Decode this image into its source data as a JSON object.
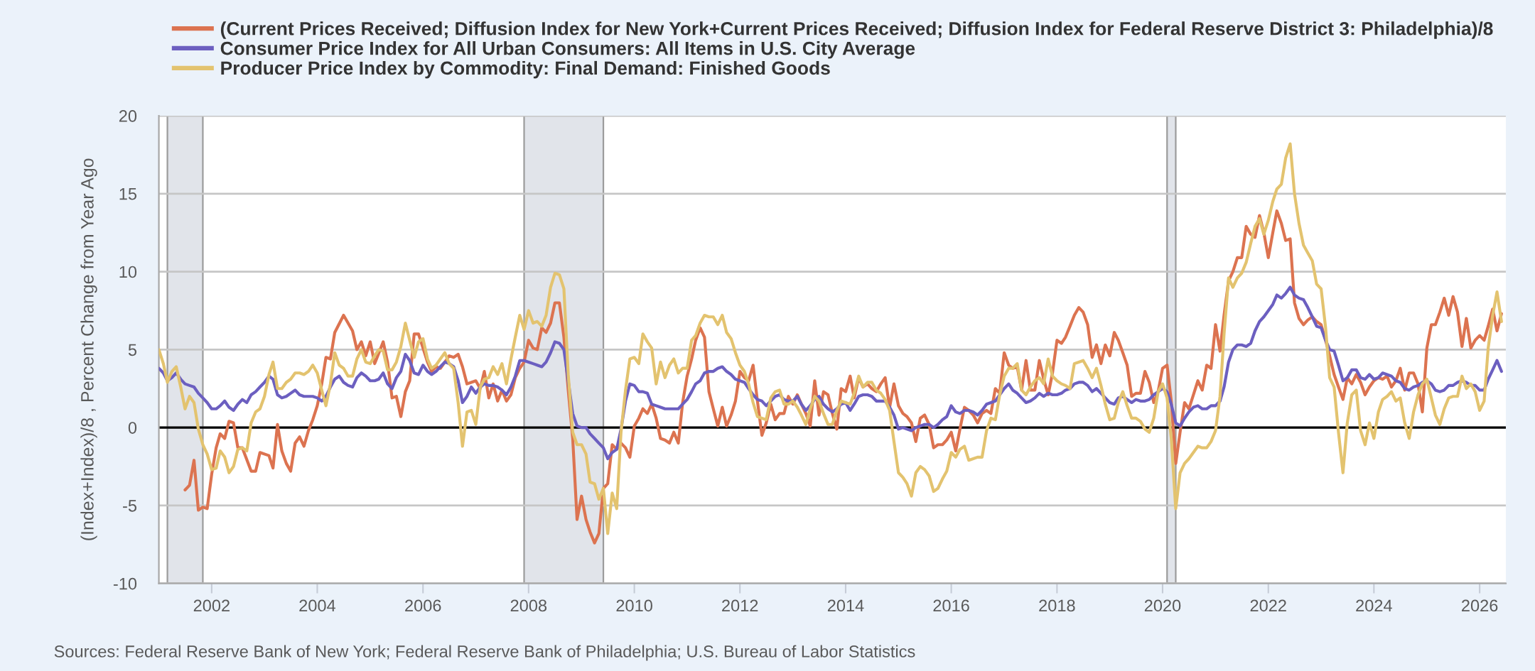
{
  "chart_data": {
    "type": "line",
    "ylabel": "(Index+Index)/8 , Percent Change from Year Ago",
    "annotations": [
      "Sources: Federal Reserve Bank of New York; Federal Reserve Bank of Philadelphia; U.S. Bureau of Labor Statistics"
    ],
    "x": [
      "2001-01",
      "2001-02",
      "2001-03",
      "2001-04",
      "2001-05",
      "2001-06",
      "2001-07",
      "2001-08",
      "2001-09",
      "2001-10",
      "2001-11",
      "2001-12",
      "2002-01",
      "2002-02",
      "2002-03",
      "2002-04",
      "2002-05",
      "2002-06",
      "2002-07",
      "2002-08",
      "2002-09",
      "2002-10",
      "2002-11",
      "2002-12",
      "2003-01",
      "2003-02",
      "2003-03",
      "2003-04",
      "2003-05",
      "2003-06",
      "2003-07",
      "2003-08",
      "2003-09",
      "2003-10",
      "2003-11",
      "2003-12",
      "2004-01",
      "2004-02",
      "2004-03",
      "2004-04",
      "2004-05",
      "2004-06",
      "2004-07",
      "2004-08",
      "2004-09",
      "2004-10",
      "2004-11",
      "2004-12",
      "2005-01",
      "2005-02",
      "2005-03",
      "2005-04",
      "2005-05",
      "2005-06",
      "2005-07",
      "2005-08",
      "2005-09",
      "2005-10",
      "2005-11",
      "2005-12",
      "2006-01",
      "2006-02",
      "2006-03",
      "2006-04",
      "2006-05",
      "2006-06",
      "2006-07",
      "2006-08",
      "2006-09",
      "2006-10",
      "2006-11",
      "2006-12",
      "2007-01",
      "2007-02",
      "2007-03",
      "2007-04",
      "2007-05",
      "2007-06",
      "2007-07",
      "2007-08",
      "2007-09",
      "2007-10",
      "2007-11",
      "2007-12",
      "2008-01",
      "2008-02",
      "2008-03",
      "2008-04",
      "2008-05",
      "2008-06",
      "2008-07",
      "2008-08",
      "2008-09",
      "2008-10",
      "2008-11",
      "2008-12",
      "2009-01",
      "2009-02",
      "2009-03",
      "2009-04",
      "2009-05",
      "2009-06",
      "2009-07",
      "2009-08",
      "2009-09",
      "2009-10",
      "2009-11",
      "2009-12",
      "2010-01",
      "2010-02",
      "2010-03",
      "2010-04",
      "2010-05",
      "2010-06",
      "2010-07",
      "2010-08",
      "2010-09",
      "2010-10",
      "2010-11",
      "2010-12",
      "2011-01",
      "2011-02",
      "2011-03",
      "2011-04",
      "2011-05",
      "2011-06",
      "2011-07",
      "2011-08",
      "2011-09",
      "2011-10",
      "2011-11",
      "2011-12",
      "2012-01",
      "2012-02",
      "2012-03",
      "2012-04",
      "2012-05",
      "2012-06",
      "2012-07",
      "2012-08",
      "2012-09",
      "2012-10",
      "2012-11",
      "2012-12",
      "2013-01",
      "2013-02",
      "2013-03",
      "2013-04",
      "2013-05",
      "2013-06",
      "2013-07",
      "2013-08",
      "2013-09",
      "2013-10",
      "2013-11",
      "2013-12",
      "2014-01",
      "2014-02",
      "2014-03",
      "2014-04",
      "2014-05",
      "2014-06",
      "2014-07",
      "2014-08",
      "2014-09",
      "2014-10",
      "2014-11",
      "2014-12",
      "2015-01",
      "2015-02",
      "2015-03",
      "2015-04",
      "2015-05",
      "2015-06",
      "2015-07",
      "2015-08",
      "2015-09",
      "2015-10",
      "2015-11",
      "2015-12",
      "2016-01",
      "2016-02",
      "2016-03",
      "2016-04",
      "2016-05",
      "2016-06",
      "2016-07",
      "2016-08",
      "2016-09",
      "2016-10",
      "2016-11",
      "2016-12",
      "2017-01",
      "2017-02",
      "2017-03",
      "2017-04",
      "2017-05",
      "2017-06",
      "2017-07",
      "2017-08",
      "2017-09",
      "2017-10",
      "2017-11",
      "2017-12",
      "2018-01",
      "2018-02",
      "2018-03",
      "2018-04",
      "2018-05",
      "2018-06",
      "2018-07",
      "2018-08",
      "2018-09",
      "2018-10",
      "2018-11",
      "2018-12",
      "2019-01",
      "2019-02",
      "2019-03",
      "2019-04",
      "2019-05",
      "2019-06",
      "2019-07",
      "2019-08",
      "2019-09",
      "2019-10",
      "2019-11",
      "2019-12",
      "2020-01",
      "2020-02",
      "2020-03",
      "2020-04",
      "2020-05",
      "2020-06",
      "2020-07",
      "2020-08",
      "2020-09",
      "2020-10",
      "2020-11",
      "2020-12",
      "2021-01",
      "2021-02",
      "2021-03",
      "2021-04",
      "2021-05",
      "2021-06",
      "2021-07",
      "2021-08",
      "2021-09",
      "2021-10",
      "2021-11",
      "2021-12",
      "2022-01",
      "2022-02",
      "2022-03",
      "2022-04",
      "2022-05",
      "2022-06",
      "2022-07",
      "2022-08",
      "2022-09",
      "2022-10",
      "2022-11",
      "2022-12",
      "2023-01",
      "2023-02",
      "2023-03",
      "2023-04",
      "2023-05",
      "2023-06",
      "2023-07",
      "2023-08",
      "2023-09",
      "2023-10",
      "2023-11",
      "2023-12",
      "2024-01",
      "2024-02",
      "2024-03",
      "2024-04",
      "2024-05",
      "2024-06",
      "2024-07",
      "2024-08",
      "2024-09",
      "2024-10",
      "2024-11",
      "2024-12",
      "2025-01",
      "2025-02",
      "2025-03",
      "2025-04",
      "2025-05",
      "2025-06",
      "2025-07",
      "2025-08",
      "2025-09",
      "2025-10",
      "2025-11",
      "2025-12",
      "2026-01",
      "2026-02",
      "2026-03",
      "2026-04",
      "2026-05",
      "2026-06"
    ],
    "series": [
      {
        "name": "(Current Prices Received; Diffusion Index for New York+Current Prices Received; Diffusion Index for Federal Reserve District 3: Philadelphia)/8",
        "color": "#dc7350",
        "x": [
          "2001-07",
          "2001-08",
          "2001-09",
          "2001-10",
          "2001-11",
          "2001-12",
          "2002-01",
          "2002-02",
          "2002-03",
          "2002-04",
          "2002-05",
          "2002-06",
          "2002-07",
          "2002-08",
          "2002-10",
          "2002-11",
          "2002-12",
          "2003-02",
          "2003-03",
          "2003-04",
          "2003-05",
          "2003-06",
          "2003-07",
          "2003-08",
          "2003-09",
          "2003-10",
          "2003-11",
          "2003-12",
          "2004-01",
          "2004-02",
          "2004-03",
          "2004-04",
          "2004-05",
          "2004-07",
          "2004-08",
          "2004-09",
          "2004-10",
          "2004-11",
          "2004-12",
          "2005-01",
          "2005-02",
          "2005-04",
          "2005-05",
          "2005-06",
          "2005-07",
          "2005-08",
          "2005-09",
          "2005-10",
          "2005-11",
          "2005-12",
          "2006-01",
          "2006-02",
          "2006-03",
          "2006-04",
          "2006-05",
          "2006-06",
          "2006-07",
          "2006-08",
          "2006-09",
          "2006-10",
          "2006-11",
          "2006-12",
          "2007-01",
          "2007-02",
          "2007-03",
          "2007-04",
          "2007-05",
          "2007-06",
          "2007-07",
          "2007-08",
          "2007-09",
          "2007-10",
          "2007-11",
          "2007-12",
          "2008-01",
          "2008-02",
          "2008-03",
          "2008-04",
          "2008-05",
          "2008-06",
          "2008-07",
          "2008-08",
          "2008-09",
          "2008-10",
          "2008-11",
          "2008-12",
          "2009-01",
          "2009-02",
          "2009-03",
          "2009-04",
          "2009-05",
          "2009-06",
          "2009-07",
          "2009-08",
          "2009-09",
          "2009-10",
          "2009-11",
          "2009-12",
          "2010-01",
          "2010-02",
          "2010-03",
          "2010-04",
          "2010-05",
          "2010-06",
          "2010-07",
          "2010-08",
          "2010-09",
          "2010-10",
          "2010-11",
          "2010-12",
          "2011-01",
          "2011-02",
          "2011-03",
          "2011-04",
          "2011-05",
          "2011-06",
          "2011-07",
          "2011-08",
          "2011-09",
          "2011-10",
          "2011-11",
          "2011-12",
          "2012-01",
          "2012-02",
          "2012-03",
          "2012-04",
          "2012-05",
          "2012-06",
          "2012-07",
          "2012-08",
          "2012-09",
          "2012-10",
          "2012-11",
          "2012-12",
          "2013-01",
          "2013-02",
          "2013-03",
          "2013-04",
          "2013-05",
          "2013-06",
          "2013-07",
          "2013-08",
          "2013-09",
          "2013-10",
          "2013-11",
          "2013-12",
          "2014-01",
          "2014-02",
          "2014-03",
          "2014-04",
          "2014-05",
          "2014-06",
          "2014-07",
          "2014-08",
          "2014-09",
          "2014-10",
          "2014-11",
          "2014-12",
          "2015-01",
          "2015-02",
          "2015-03",
          "2015-04",
          "2015-05",
          "2015-06",
          "2015-07",
          "2015-08",
          "2015-09",
          "2015-10",
          "2015-11",
          "2015-12",
          "2016-01",
          "2016-02",
          "2016-03",
          "2016-04",
          "2016-05",
          "2016-06",
          "2016-07",
          "2016-08",
          "2016-09",
          "2016-10",
          "2016-11",
          "2016-12",
          "2017-01",
          "2017-02",
          "2017-03",
          "2017-04",
          "2017-05",
          "2017-06",
          "2017-07",
          "2017-08",
          "2017-09",
          "2017-10",
          "2017-11",
          "2017-12",
          "2018-01",
          "2018-02",
          "2018-03",
          "2018-04",
          "2018-05",
          "2018-06",
          "2018-07",
          "2018-08",
          "2018-09",
          "2018-10",
          "2018-11",
          "2018-12",
          "2019-01",
          "2019-02",
          "2019-03",
          "2019-04",
          "2019-05",
          "2019-06",
          "2019-07",
          "2019-08",
          "2019-09",
          "2019-10",
          "2019-11",
          "2019-12",
          "2020-01",
          "2020-02",
          "2020-03",
          "2020-04",
          "2020-05",
          "2020-06",
          "2020-07",
          "2020-08",
          "2020-09",
          "2020-10",
          "2020-11",
          "2020-12",
          "2021-01",
          "2021-02",
          "2021-03",
          "2021-04",
          "2021-05",
          "2021-06",
          "2021-07",
          "2021-08",
          "2021-09",
          "2021-10",
          "2021-11",
          "2021-12",
          "2022-01",
          "2022-02",
          "2022-03",
          "2022-04",
          "2022-05",
          "2022-06",
          "2022-07",
          "2022-08",
          "2022-09",
          "2022-10",
          "2022-11",
          "2022-12",
          "2023-01",
          "2023-02",
          "2023-03",
          "2023-04",
          "2023-05",
          "2023-06",
          "2023-07",
          "2023-08",
          "2023-09",
          "2023-10",
          "2023-11",
          "2023-12",
          "2024-01",
          "2024-02",
          "2024-03",
          "2024-04",
          "2024-05",
          "2024-06",
          "2024-07",
          "2024-08",
          "2024-09",
          "2024-10",
          "2024-11",
          "2024-12",
          "2025-01",
          "2025-02",
          "2025-03",
          "2025-04",
          "2025-05",
          "2025-06",
          "2025-07",
          "2025-08",
          "2025-09",
          "2025-10",
          "2025-11",
          "2025-12",
          "2026-01",
          "2026-02",
          "2026-03",
          "2026-04",
          "2026-05",
          "2026-06"
        ],
        "values": [
          -4.0,
          -3.7,
          -2.1,
          -5.3,
          -5.1,
          -5.2,
          -3.0,
          -1.3,
          -0.4,
          -0.7,
          0.4,
          0.3,
          -1.3,
          -1.3,
          -2.8,
          -2.8,
          -1.6,
          -1.8,
          -2.6,
          0.2,
          -1.5,
          -2.3,
          -2.8,
          -1.0,
          -0.6,
          -1.2,
          -0.2,
          0.5,
          1.4,
          2.8,
          4.5,
          4.4,
          6.1,
          7.2,
          6.7,
          6.2,
          5.0,
          5.5,
          4.6,
          5.5,
          4.1,
          5.5,
          4.2,
          1.9,
          2.0,
          0.7,
          2.3,
          3.0,
          6.0,
          6.0,
          5.1,
          4.2,
          3.6,
          3.9,
          3.8,
          4.2,
          4.6,
          4.5,
          4.7,
          3.9,
          2.8,
          2.9,
          3.0,
          2.5,
          3.6,
          1.9,
          2.8,
          1.7,
          2.4,
          1.7,
          2.1,
          3.2,
          3.8,
          4.2,
          5.6,
          5.1,
          5.0,
          6.4,
          6.1,
          6.7,
          8.0,
          8.0,
          5.8,
          2.4,
          -0.7,
          -5.9,
          -4.4,
          -5.9,
          -6.7,
          -7.4,
          -6.8,
          -3.9,
          -3.6,
          -1.1,
          -1.4,
          -1.0,
          -1.3,
          -1.9,
          0.1,
          0.6,
          1.2,
          0.9,
          1.5,
          0.6,
          -0.7,
          -0.8,
          -1.0,
          -0.3,
          -1.0,
          1.6,
          3.3,
          4.4,
          5.6,
          6.4,
          5.8,
          2.3,
          1.2,
          0.1,
          1.3,
          0.1,
          0.8,
          1.7,
          3.6,
          3.2,
          3.0,
          4.0,
          1.7,
          -0.5,
          0.3,
          1.5,
          0.5,
          0.9,
          0.9,
          2.0,
          1.5,
          2.1,
          1.5,
          0.9,
          0.1,
          3.0,
          0.8,
          2.3,
          2.1,
          0.9,
          -0.1,
          2.5,
          2.3,
          3.3,
          1.9,
          3.2,
          2.6,
          2.8,
          2.5,
          2.3,
          2.8,
          3.2,
          1.3,
          2.8,
          1.4,
          0.9,
          0.7,
          0.3,
          -0.9,
          0.6,
          0.8,
          0.2,
          -1.3,
          -1.1,
          -1.1,
          -0.8,
          -0.3,
          -1.5,
          -0.1,
          1.3,
          1.1,
          0.8,
          0.3,
          0.9,
          1.1,
          0.9,
          2.5,
          2.2,
          4.8,
          4.0,
          3.8,
          3.9,
          2.4,
          4.3,
          2.4,
          2.4,
          4.3,
          3.1,
          2.1,
          3.5,
          5.6,
          5.4,
          5.8,
          6.5,
          7.2,
          7.7,
          7.4,
          6.6,
          4.5,
          5.3,
          4.1,
          5.3,
          4.6,
          6.1,
          5.6,
          4.8,
          4.0,
          2.0,
          2.2,
          2.2,
          3.6,
          2.9,
          1.6,
          2.3,
          3.8,
          4.0,
          1.7,
          -2.3,
          -0.3,
          1.6,
          1.2,
          2.1,
          3.0,
          2.4,
          4.0,
          3.8,
          6.6,
          4.9,
          7.2,
          9.4,
          10.0,
          10.9,
          10.9,
          12.9,
          12.4,
          12.2,
          13.6,
          12.5,
          10.9,
          12.5,
          13.9,
          13.1,
          12.0,
          12.1,
          8.0,
          7.0,
          6.6,
          6.9,
          7.1,
          6.8,
          6.6,
          5.6,
          4.6,
          3.4,
          2.6,
          1.8,
          3.2,
          2.8,
          3.4,
          2.9,
          2.1,
          2.6,
          3.0,
          3.2,
          3.1,
          3.3,
          2.6,
          3.0,
          3.8,
          2.4,
          3.5,
          3.5,
          2.8,
          1.0,
          5.1,
          6.6,
          6.6,
          7.4,
          8.3,
          7.2,
          8.4,
          7.4,
          5.2,
          7.0,
          5.1,
          5.6,
          5.9,
          5.6,
          6.5,
          7.6,
          6.2,
          7.3
        ]
      },
      {
        "name": "Consumer Price Index for All Urban Consumers: All Items in U.S. City Average",
        "color": "#6c5fc0",
        "values": [
          3.8,
          3.5,
          3.0,
          3.2,
          3.5,
          3.1,
          2.8,
          2.7,
          2.6,
          2.2,
          1.9,
          1.6,
          1.2,
          1.2,
          1.4,
          1.7,
          1.3,
          1.1,
          1.5,
          1.8,
          1.6,
          2.1,
          2.3,
          2.6,
          2.9,
          3.3,
          3.1,
          2.1,
          1.9,
          2.0,
          2.2,
          2.4,
          2.1,
          2.0,
          2.0,
          2.0,
          1.9,
          1.7,
          2.0,
          2.6,
          3.1,
          3.3,
          2.9,
          2.7,
          2.6,
          3.2,
          3.5,
          3.3,
          3.0,
          3.0,
          3.1,
          3.5,
          2.8,
          2.5,
          3.2,
          3.6,
          4.7,
          4.3,
          3.5,
          3.4,
          4.0,
          3.6,
          3.4,
          3.6,
          3.9,
          4.2,
          4.1,
          3.9,
          3.0,
          1.6,
          2.0,
          2.6,
          2.2,
          2.6,
          2.8,
          2.7,
          2.7,
          2.6,
          2.4,
          2.1,
          2.6,
          3.3,
          4.3,
          4.3,
          4.2,
          4.1,
          4.0,
          3.9,
          4.2,
          4.8,
          5.5,
          5.4,
          5.0,
          3.0,
          0.9,
          0.1,
          0.0,
          0.0,
          -0.4,
          -0.7,
          -1.0,
          -1.3,
          -2.0,
          -1.6,
          -1.4,
          -0.1,
          1.7,
          2.8,
          2.7,
          2.3,
          2.3,
          2.2,
          1.5,
          1.4,
          1.3,
          1.2,
          1.2,
          1.2,
          1.2,
          1.5,
          1.8,
          2.3,
          2.8,
          3.0,
          3.5,
          3.6,
          3.6,
          3.8,
          3.9,
          3.6,
          3.4,
          3.1,
          3.0,
          2.9,
          2.5,
          2.1,
          1.8,
          1.7,
          1.4,
          1.7,
          2.0,
          2.1,
          1.8,
          1.7,
          1.7,
          2.0,
          1.5,
          1.1,
          1.4,
          1.8,
          2.0,
          1.5,
          1.2,
          1.0,
          1.2,
          1.5,
          1.6,
          1.1,
          1.5,
          2.0,
          2.1,
          2.1,
          2.0,
          1.7,
          1.7,
          1.7,
          1.3,
          0.8,
          -0.1,
          0.0,
          -0.1,
          -0.2,
          0.0,
          0.1,
          0.2,
          0.2,
          0.0,
          0.2,
          0.5,
          0.7,
          1.4,
          1.0,
          0.9,
          1.1,
          1.1,
          1.0,
          0.8,
          1.1,
          1.5,
          1.6,
          1.7,
          2.1,
          2.5,
          2.8,
          2.4,
          2.2,
          1.9,
          1.6,
          1.7,
          1.9,
          2.2,
          2.0,
          2.2,
          2.1,
          2.1,
          2.2,
          2.4,
          2.5,
          2.8,
          2.9,
          2.9,
          2.7,
          2.3,
          2.5,
          2.2,
          1.9,
          1.6,
          1.5,
          1.9,
          2.0,
          1.8,
          1.6,
          1.8,
          1.7,
          1.7,
          1.8,
          2.1,
          2.3,
          2.5,
          2.3,
          1.5,
          0.3,
          0.1,
          0.6,
          1.0,
          1.3,
          1.4,
          1.2,
          1.2,
          1.4,
          1.4,
          1.7,
          2.6,
          4.2,
          5.0,
          5.3,
          5.3,
          5.2,
          5.4,
          6.2,
          6.8,
          7.1,
          7.5,
          7.9,
          8.5,
          8.3,
          8.6,
          9.0,
          8.5,
          8.3,
          8.2,
          7.7,
          7.1,
          6.5,
          6.4,
          5.6,
          5.0,
          4.9,
          4.0,
          3.0,
          3.2,
          3.7,
          3.7,
          3.2,
          3.1,
          3.4,
          3.1,
          3.2,
          3.5,
          3.4,
          3.3,
          3.0,
          2.9,
          2.5,
          2.4,
          2.6,
          2.7,
          2.9,
          3.0,
          2.8,
          2.4,
          2.3,
          2.4,
          2.7,
          2.7,
          2.9,
          3.0,
          2.9,
          2.7,
          2.7,
          2.4,
          2.4,
          3.1,
          3.7,
          4.3,
          3.6
        ]
      },
      {
        "name": "Producer Price Index by Commodity: Final Demand: Finished Goods",
        "color": "#e3c36f",
        "values": [
          5.0,
          4.1,
          2.9,
          3.6,
          3.9,
          2.6,
          1.2,
          2.0,
          1.6,
          -0.1,
          -1.1,
          -1.7,
          -2.7,
          -2.6,
          -1.5,
          -1.9,
          -2.9,
          -2.5,
          -1.4,
          -1.3,
          -1.5,
          0.3,
          1.0,
          1.2,
          2.0,
          3.4,
          4.2,
          2.5,
          2.5,
          2.9,
          3.1,
          3.5,
          3.5,
          3.4,
          3.6,
          4.0,
          3.5,
          2.4,
          1.4,
          2.8,
          4.8,
          4.0,
          3.8,
          3.3,
          3.3,
          4.4,
          5.0,
          4.2,
          4.1,
          4.6,
          5.0,
          4.9,
          3.7,
          3.7,
          4.2,
          5.2,
          6.7,
          5.6,
          4.5,
          5.5,
          5.7,
          4.4,
          3.8,
          4.0,
          4.4,
          4.8,
          4.1,
          3.8,
          1.6,
          -1.2,
          1.0,
          1.1,
          0.2,
          2.6,
          3.1,
          3.2,
          3.9,
          3.4,
          4.1,
          2.8,
          4.4,
          5.8,
          7.2,
          6.3,
          7.5,
          6.7,
          6.8,
          6.5,
          7.2,
          9.0,
          9.9,
          9.8,
          8.9,
          3.4,
          -0.3,
          -1.1,
          -1.1,
          -1.7,
          -3.5,
          -3.6,
          -4.6,
          -3.9,
          -6.8,
          -4.2,
          -5.2,
          -0.3,
          2.4,
          4.4,
          4.5,
          4.1,
          6.0,
          5.5,
          5.1,
          2.8,
          4.2,
          3.2,
          4.0,
          4.4,
          3.5,
          3.8,
          3.8,
          5.6,
          5.9,
          6.7,
          7.2,
          7.1,
          7.1,
          6.6,
          7.2,
          6.1,
          5.7,
          4.8,
          4.0,
          3.6,
          2.8,
          1.6,
          0.7,
          0.6,
          0.5,
          1.9,
          2.3,
          2.4,
          1.5,
          1.5,
          1.7,
          1.3,
          0.8,
          0.2,
          1.2,
          2.0,
          1.7,
          0.9,
          0.2,
          0.2,
          1.1,
          1.7,
          1.6,
          1.5,
          2.2,
          3.3,
          2.6,
          2.9,
          2.9,
          2.4,
          2.2,
          1.8,
          1.1,
          -0.9,
          -2.9,
          -3.2,
          -3.6,
          -4.4,
          -2.9,
          -2.5,
          -2.7,
          -3.1,
          -4.1,
          -3.9,
          -3.3,
          -2.8,
          -1.6,
          -1.9,
          -1.4,
          -1.2,
          -2.1,
          -2.0,
          -1.9,
          -1.9,
          -0.2,
          0.6,
          0.5,
          2.1,
          3.3,
          3.8,
          3.8,
          4.1,
          2.4,
          2.1,
          2.6,
          3.0,
          3.2,
          2.8,
          4.4,
          3.3,
          3.0,
          2.8,
          2.7,
          2.5,
          4.1,
          4.2,
          4.3,
          3.8,
          3.2,
          3.8,
          2.7,
          1.5,
          0.5,
          0.6,
          1.6,
          2.3,
          1.4,
          0.6,
          0.6,
          0.4,
          -0.1,
          -0.3,
          0.6,
          2.3,
          2.8,
          1.9,
          -0.7,
          -5.2,
          -2.9,
          -2.3,
          -2.0,
          -1.6,
          -1.2,
          -1.3,
          -1.3,
          -0.9,
          -0.2,
          2.0,
          6.0,
          9.6,
          9.0,
          9.6,
          9.9,
          10.6,
          11.8,
          12.9,
          13.4,
          12.4,
          13.3,
          14.5,
          15.3,
          15.6,
          17.3,
          18.2,
          15.0,
          13.1,
          11.7,
          11.2,
          10.7,
          9.2,
          8.9,
          6.4,
          3.2,
          2.6,
          -0.3,
          -2.9,
          0.3,
          2.1,
          2.4,
          -0.2,
          -1.1,
          0.3,
          -0.7,
          1.0,
          1.8,
          2.0,
          2.3,
          1.7,
          1.9,
          0.3,
          -0.7,
          1.0,
          2.1,
          2.8,
          3.1,
          1.9,
          0.8,
          0.2,
          1.2,
          1.9,
          2.0,
          2.0,
          3.3,
          2.5,
          2.8,
          2.3,
          1.1,
          1.7,
          5.1,
          7.2,
          8.7,
          6.8
        ]
      }
    ],
    "xlim": [
      "2001-01",
      "2026-07"
    ],
    "xticks": [
      "2002",
      "2004",
      "2006",
      "2008",
      "2010",
      "2012",
      "2014",
      "2016",
      "2018",
      "2020",
      "2022",
      "2024",
      "2026"
    ],
    "ylim": [
      -10,
      20
    ],
    "yticks": [
      -10,
      -5,
      0,
      5,
      10,
      15,
      20
    ],
    "bands": [
      {
        "axis": "x",
        "from": "2001-03",
        "to": "2001-11",
        "color": "#e1e4ea"
      },
      {
        "axis": "x",
        "from": "2007-12",
        "to": "2009-06",
        "color": "#e1e4ea"
      },
      {
        "axis": "x",
        "from": "2020-02",
        "to": "2020-04",
        "color": "#e1e4ea"
      }
    ],
    "ref_lines": [
      {
        "axis": "y",
        "value": 0,
        "color": "#000000"
      }
    ],
    "grid": "y",
    "legend": "top left"
  }
}
